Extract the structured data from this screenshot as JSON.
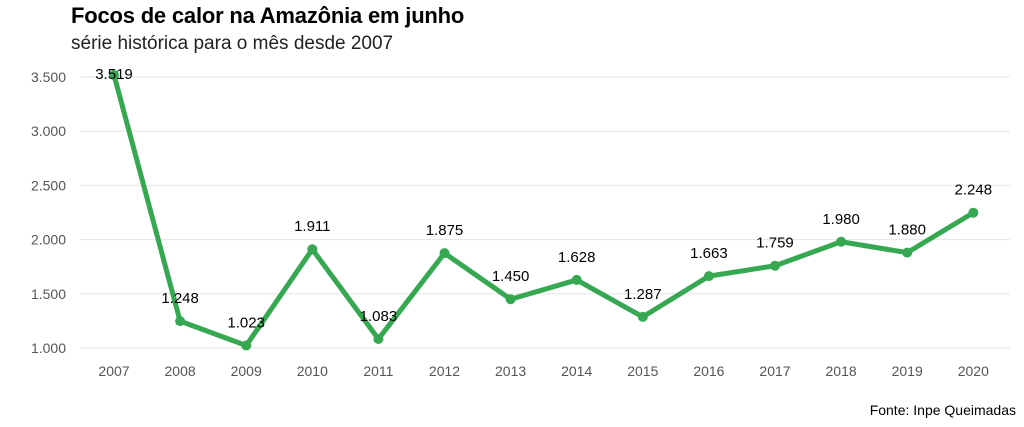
{
  "header": {
    "title": "Focos de calor na Amazônia em junho",
    "subtitle": "série histórica para o mês desde 2007"
  },
  "footer": {
    "source": "Fonte: Inpe Queimadas"
  },
  "colors": {
    "line": "#36a852",
    "grid": "#e6e6e6",
    "tick": "#555555"
  },
  "chart_data": {
    "type": "line",
    "categories": [
      "2007",
      "2008",
      "2009",
      "2010",
      "2011",
      "2012",
      "2013",
      "2014",
      "2015",
      "2016",
      "2017",
      "2018",
      "2019",
      "2020"
    ],
    "values": [
      3519,
      1248,
      1023,
      1911,
      1083,
      1875,
      1450,
      1628,
      1287,
      1663,
      1759,
      1980,
      1880,
      2248
    ],
    "data_labels": [
      "3.519",
      "1.248",
      "1.023",
      "1.911",
      "1.083",
      "1.875",
      "1.450",
      "1.628",
      "1.287",
      "1.663",
      "1.759",
      "1.980",
      "1.880",
      "2.248"
    ],
    "y_ticks": [
      1000,
      1500,
      2000,
      2500,
      3000,
      3500
    ],
    "y_tick_labels": [
      "1.000",
      "1.500",
      "2.000",
      "2.500",
      "3.000",
      "3.500"
    ],
    "ylim": [
      1000,
      3500
    ],
    "grid": true,
    "legend": "none"
  }
}
